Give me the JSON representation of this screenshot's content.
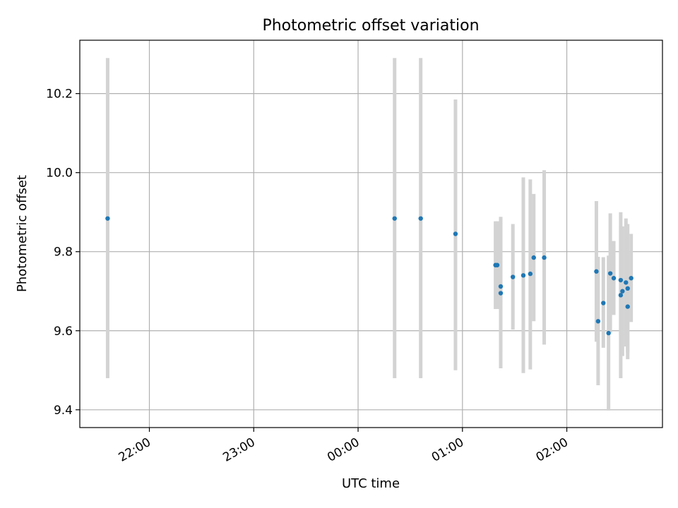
{
  "chart_data": {
    "type": "scatter",
    "title": "Photometric offset variation",
    "xlabel": "UTC time",
    "ylabel": "Photometric offset",
    "grid": true,
    "legend": "none",
    "colors": {
      "point": "#1f77b4",
      "errorbar": "#d3d3d3",
      "grid": "#b0b0b0",
      "axes": "#000000"
    },
    "x_axis": {
      "unit": "UTC time (HH:MM)",
      "range": [
        "21:20",
        "02:55"
      ],
      "ticks": [
        "22:00",
        "23:00",
        "00:00",
        "01:00",
        "02:00"
      ]
    },
    "y_axis": {
      "range": [
        9.355,
        10.335
      ],
      "ticks": [
        9.4,
        9.6,
        9.8,
        10.0,
        10.2
      ],
      "tick_labels": [
        "9.4",
        "9.6",
        "9.8",
        "10.0",
        "10.2"
      ]
    },
    "points": [
      {
        "x": "21:36",
        "y": 9.884,
        "y_low": 9.48,
        "y_high": 10.29
      },
      {
        "x": "00:21",
        "y": 9.884,
        "y_low": 9.48,
        "y_high": 10.29
      },
      {
        "x": "00:36",
        "y": 9.884,
        "y_low": 9.48,
        "y_high": 10.29
      },
      {
        "x": "00:56",
        "y": 9.845,
        "y_low": 9.5,
        "y_high": 10.185
      },
      {
        "x": "01:19",
        "y": 9.766,
        "y_low": 9.655,
        "y_high": 9.877
      },
      {
        "x": "01:20",
        "y": 9.766,
        "y_low": 9.655,
        "y_high": 9.877
      },
      {
        "x": "01:22",
        "y": 9.712,
        "y_low": 9.54,
        "y_high": 9.888
      },
      {
        "x": "01:22",
        "y": 9.695,
        "y_low": 9.505,
        "y_high": 9.888
      },
      {
        "x": "01:29",
        "y": 9.736,
        "y_low": 9.603,
        "y_high": 9.87
      },
      {
        "x": "01:35",
        "y": 9.74,
        "y_low": 9.493,
        "y_high": 9.988
      },
      {
        "x": "01:39",
        "y": 9.744,
        "y_low": 9.502,
        "y_high": 9.983
      },
      {
        "x": "01:41",
        "y": 9.785,
        "y_low": 9.624,
        "y_high": 9.946
      },
      {
        "x": "01:47",
        "y": 9.785,
        "y_low": 9.565,
        "y_high": 10.006
      },
      {
        "x": "02:17",
        "y": 9.75,
        "y_low": 9.572,
        "y_high": 9.928
      },
      {
        "x": "02:18",
        "y": 9.624,
        "y_low": 9.462,
        "y_high": 9.787
      },
      {
        "x": "02:21",
        "y": 9.67,
        "y_low": 9.557,
        "y_high": 9.786
      },
      {
        "x": "02:24",
        "y": 9.594,
        "y_low": 9.398,
        "y_high": 9.79
      },
      {
        "x": "02:25",
        "y": 9.745,
        "y_low": 9.595,
        "y_high": 9.897
      },
      {
        "x": "02:27",
        "y": 9.733,
        "y_low": 9.64,
        "y_high": 9.827
      },
      {
        "x": "02:31",
        "y": 9.728,
        "y_low": 9.59,
        "y_high": 9.865
      },
      {
        "x": "02:31",
        "y": 9.69,
        "y_low": 9.48,
        "y_high": 9.9
      },
      {
        "x": "02:32",
        "y": 9.7,
        "y_low": 9.536,
        "y_high": 9.864
      },
      {
        "x": "02:34",
        "y": 9.722,
        "y_low": 9.56,
        "y_high": 9.884
      },
      {
        "x": "02:35",
        "y": 9.707,
        "y_low": 9.545,
        "y_high": 9.87
      },
      {
        "x": "02:35",
        "y": 9.661,
        "y_low": 9.528,
        "y_high": 9.795
      },
      {
        "x": "02:37",
        "y": 9.733,
        "y_low": 9.622,
        "y_high": 9.845
      }
    ]
  }
}
